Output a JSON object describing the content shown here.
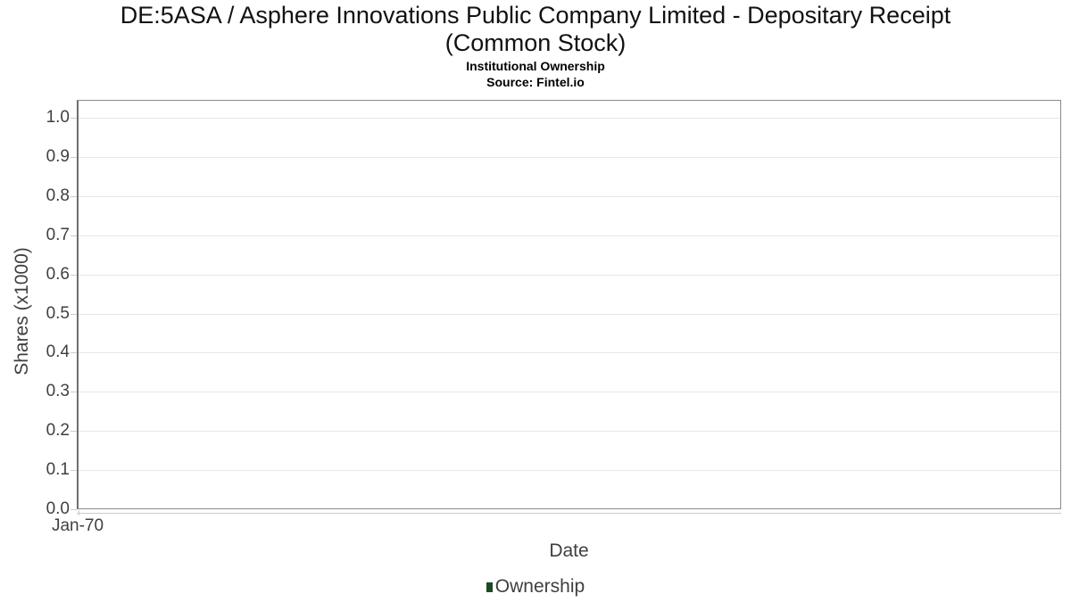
{
  "header": {
    "title_lines": [
      "DE:5ASA / Asphere Innovations Public Company Limited - Depositary Receipt",
      "(Common Stock)"
    ],
    "subtitle": "Institutional Ownership",
    "source": "Source: Fintel.io"
  },
  "chart_data": {
    "type": "line",
    "title": "DE:5ASA / Asphere Innovations Public Company Limited - Depositary Receipt (Common Stock)",
    "subtitle": "Institutional Ownership",
    "source": "Source: Fintel.io",
    "xlabel": "Date",
    "ylabel": "Shares (x1000)",
    "ylim": [
      0.0,
      1.045
    ],
    "yticks": [
      "0.0",
      "0.1",
      "0.2",
      "0.3",
      "0.4",
      "0.5",
      "0.6",
      "0.7",
      "0.8",
      "0.9",
      "1.0"
    ],
    "xticks": [
      "Jan-70"
    ],
    "grid": true,
    "legend_position": "bottom",
    "series": [
      {
        "name": "Ownership",
        "color": "#1d4a24",
        "x": [],
        "values": []
      }
    ]
  },
  "colors": {
    "legend_marker": "#1d4a24",
    "gridline": "#e7e7e7",
    "plot_border": "#8a8a8a",
    "axis_text": "#3f3f3f",
    "tick_mark": "#cccccc",
    "title_text": "#121212"
  }
}
